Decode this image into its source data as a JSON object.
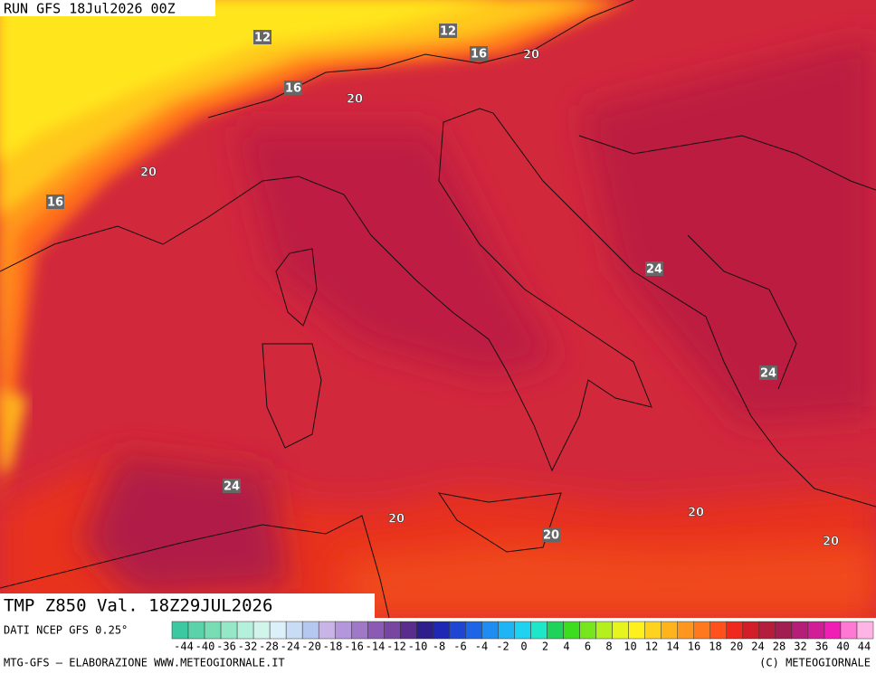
{
  "header": {
    "run": "RUN GFS 18Jul2026 00Z"
  },
  "map": {
    "title": "TMP Z850 Val. 18Z29JUL2026",
    "contour_labels": [
      12,
      12,
      16,
      20,
      16,
      20,
      20,
      16,
      24,
      24,
      24,
      20,
      20,
      20,
      20
    ]
  },
  "colorbar": {
    "source": "DATI NCEP GFS 0.25°",
    "labels": [
      -44,
      -40,
      -36,
      -32,
      -28,
      -24,
      -20,
      -18,
      -16,
      -14,
      -12,
      -10,
      -8,
      -6,
      -4,
      -2,
      0,
      2,
      4,
      6,
      8,
      10,
      12,
      14,
      16,
      18,
      20,
      24,
      28,
      32,
      36,
      40,
      44
    ],
    "colors": [
      "#3cc8a0",
      "#5ad2aa",
      "#78dcb4",
      "#96e6c8",
      "#b4f0dc",
      "#d2f5eb",
      "#dcf0fa",
      "#c8dcf5",
      "#b4c8f0",
      "#c8b4e6",
      "#b496dc",
      "#a078c8",
      "#8c5ab4",
      "#7846a0",
      "#5a2d8c",
      "#2d1e8c",
      "#1e28b4",
      "#1e46d2",
      "#1e64e6",
      "#1e8cf0",
      "#1eb4f5",
      "#1ed2f0",
      "#1ee6c8",
      "#1ed25a",
      "#3cdc1e",
      "#78e61e",
      "#b4f01e",
      "#e6f51e",
      "#fff01e",
      "#ffd21e",
      "#ffb41e",
      "#ff961e",
      "#ff781e",
      "#ff501e",
      "#f0281e",
      "#d21e28",
      "#b41e3c",
      "#a01e50",
      "#b41e78",
      "#d21e96",
      "#f01eb4",
      "#ff78d2",
      "#ffb4e6"
    ]
  },
  "footer": {
    "left": "MTG-GFS — ELABORAZIONE WWW.METEOGIORNALE.IT",
    "right": "(C) METEOGIORNALE"
  }
}
